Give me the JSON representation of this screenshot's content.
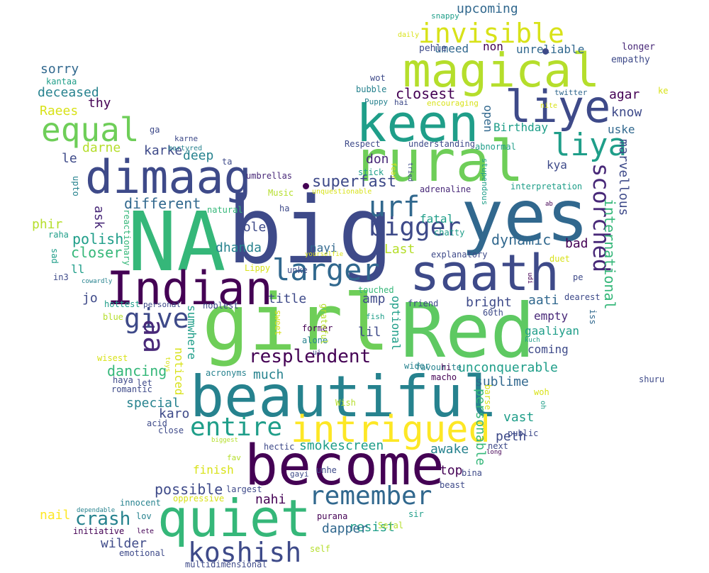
{
  "words": [
    {
      "text": "big",
      "color": "#3e4a89"
    },
    {
      "text": "yes",
      "color": "#31688e"
    },
    {
      "text": "NA",
      "color": "#35b779"
    },
    {
      "text": "girl",
      "color": "#6ece58"
    },
    {
      "text": "Red",
      "color": "#5ec962"
    },
    {
      "text": "Indian",
      "color": "#440154"
    },
    {
      "text": "saath",
      "color": "#3e4a89"
    },
    {
      "text": "beautiful",
      "color": "#26828e"
    },
    {
      "text": "become",
      "color": "#440154"
    },
    {
      "text": "quiet",
      "color": "#35b779"
    },
    {
      "text": "rural",
      "color": "#6ece58"
    },
    {
      "text": "keen",
      "color": "#1f9e89"
    },
    {
      "text": "magical",
      "color": "#b5de2b"
    },
    {
      "text": "dimaag",
      "color": "#3e4a89"
    },
    {
      "text": "liye",
      "color": "#3e4a89"
    },
    {
      "text": "intrigued",
      "color": "#fde725"
    },
    {
      "text": "equal",
      "color": "#6ece58"
    },
    {
      "text": "larger",
      "color": "#31688e"
    },
    {
      "text": "remember",
      "color": "#31688e"
    },
    {
      "text": "koshish",
      "color": "#3e4a89"
    },
    {
      "text": "entire",
      "color": "#1f9e89"
    },
    {
      "text": "invisible",
      "color": "#d8e219"
    },
    {
      "text": "liya",
      "color": "#1f9e89"
    },
    {
      "text": "bigger",
      "color": "#3e4a89"
    },
    {
      "text": "scorched",
      "color": "#482878"
    },
    {
      "text": "give",
      "color": "#3e4a89"
    },
    {
      "text": "urf",
      "color": "#31688e"
    },
    {
      "text": "aa",
      "color": "#482878"
    },
    {
      "text": "resplendent",
      "color": "#440154"
    },
    {
      "text": "crash",
      "color": "#26828e"
    },
    {
      "text": "superfast",
      "color": "#3e4a89"
    },
    {
      "text": "international",
      "color": "#35b779"
    },
    {
      "text": "dancing",
      "color": "#35b779"
    },
    {
      "text": "smokescreen",
      "color": "#1f9e89"
    },
    {
      "text": "unconquerable",
      "color": "#1f9e89"
    },
    {
      "text": "possible",
      "color": "#3e4a89"
    },
    {
      "text": "different",
      "color": "#31688e"
    },
    {
      "text": "polish",
      "color": "#1f9e89"
    },
    {
      "text": "closer",
      "color": "#35b779"
    },
    {
      "text": "dynamic",
      "color": "#31688e"
    },
    {
      "text": "closest",
      "color": "#440154"
    },
    {
      "text": "upcoming",
      "color": "#31688e"
    },
    {
      "text": "marvellous",
      "color": "#3e4a89"
    },
    {
      "text": "personable",
      "color": "#35b779"
    },
    {
      "text": "resist",
      "color": "#1f9e89"
    },
    {
      "text": "dapper",
      "color": "#31688e"
    },
    {
      "text": "awake",
      "color": "#26828e"
    },
    {
      "text": "sublime",
      "color": "#31688e"
    },
    {
      "text": "special",
      "color": "#26828e"
    },
    {
      "text": "nail",
      "color": "#fde725"
    },
    {
      "text": "wilder",
      "color": "#3e4a89"
    },
    {
      "text": "finish",
      "color": "#d8e219"
    },
    {
      "text": "deceased",
      "color": "#26828e"
    },
    {
      "text": "sorry",
      "color": "#31688e"
    },
    {
      "text": "Raees",
      "color": "#d8e219"
    },
    {
      "text": "thy",
      "color": "#440154"
    },
    {
      "text": "darne",
      "color": "#b5de2b"
    },
    {
      "text": "karke",
      "color": "#3e4a89"
    },
    {
      "text": "deep",
      "color": "#26828e"
    },
    {
      "text": "le",
      "color": "#3e4a89"
    },
    {
      "text": "phir",
      "color": "#b5de2b"
    },
    {
      "text": "ask",
      "color": "#482878"
    },
    {
      "text": "bole",
      "color": "#3e4a89"
    },
    {
      "text": "dhanda",
      "color": "#26828e"
    },
    {
      "text": "ll",
      "color": "#1f9e89"
    },
    {
      "text": "jo",
      "color": "#3e4a89"
    },
    {
      "text": "title",
      "color": "#3e4a89"
    },
    {
      "text": "sumwhere",
      "color": "#1f9e89"
    },
    {
      "text": "noticed",
      "color": "#d8e219"
    },
    {
      "text": "much",
      "color": "#26828e"
    },
    {
      "text": "karo",
      "color": "#3e4a89"
    },
    {
      "text": "nahi",
      "color": "#440154"
    },
    {
      "text": "amp",
      "color": "#3e4a89"
    },
    {
      "text": "lil",
      "color": "#3e4a89"
    },
    {
      "text": "optional",
      "color": "#1f9e89"
    },
    {
      "text": "nayi",
      "color": "#31688e"
    },
    {
      "text": "Last",
      "color": "#b5de2b"
    },
    {
      "text": "fatal",
      "color": "#1f9e89"
    },
    {
      "text": "bad",
      "color": "#440154"
    },
    {
      "text": "aati",
      "color": "#31688e"
    },
    {
      "text": "empty",
      "color": "#482878"
    },
    {
      "text": "bright",
      "color": "#3e4a89"
    },
    {
      "text": "gaaliyan",
      "color": "#1f9e89"
    },
    {
      "text": "coming",
      "color": "#3e4a89"
    },
    {
      "text": "vast",
      "color": "#1f9e89"
    },
    {
      "text": "peth",
      "color": "#3e4a89"
    },
    {
      "text": "top",
      "color": "#440154"
    },
    {
      "text": "don",
      "color": "#482878"
    },
    {
      "text": "kya",
      "color": "#3e4a89"
    },
    {
      "text": "agar",
      "color": "#440154"
    },
    {
      "text": "know",
      "color": "#3e4a89"
    },
    {
      "text": "uske",
      "color": "#31688e"
    },
    {
      "text": "Birthday",
      "color": "#1f9e89"
    },
    {
      "text": "open",
      "color": "#31688e"
    },
    {
      "text": "umeed",
      "color": "#31688e"
    },
    {
      "text": "non",
      "color": "#440154"
    },
    {
      "text": "unreliable",
      "color": "#31688e"
    },
    {
      "text": "longer",
      "color": "#482878"
    },
    {
      "text": "empathy",
      "color": "#3e4a89"
    },
    {
      "text": "pehle",
      "color": "#3e4a89"
    },
    {
      "text": "twitter",
      "color": "#31688e"
    },
    {
      "text": "ke",
      "color": "#d8e219"
    },
    {
      "text": "nite",
      "color": "#d8e219"
    },
    {
      "text": "snappy",
      "color": "#1f9e89"
    },
    {
      "text": "daily",
      "color": "#d8e219"
    },
    {
      "text": "wot",
      "color": "#3e4a89"
    },
    {
      "text": "bubble",
      "color": "#26828e"
    },
    {
      "text": "hai",
      "color": "#3e4a89"
    },
    {
      "text": "Puppy",
      "color": "#26828e"
    },
    {
      "text": "encouraging",
      "color": "#d8e219"
    },
    {
      "text": "Respect",
      "color": "#3e4a89"
    },
    {
      "text": "understanding",
      "color": "#3e4a89"
    },
    {
      "text": "abnormal",
      "color": "#1f9e89"
    },
    {
      "text": "stupendous",
      "color": "#1f9e89"
    },
    {
      "text": "fear",
      "color": "#d8e219"
    },
    {
      "text": "tried",
      "color": "#3e4a89"
    },
    {
      "text": "stick",
      "color": "#1f9e89"
    },
    {
      "text": "unquestionable",
      "color": "#d8e219"
    },
    {
      "text": "adrenaline",
      "color": "#482878"
    },
    {
      "text": "interpretation",
      "color": "#1f9e89"
    },
    {
      "text": "ab",
      "color": "#440154"
    },
    {
      "text": "chatty",
      "color": "#1f9e89"
    },
    {
      "text": "explanatory",
      "color": "#3e4a89"
    },
    {
      "text": "duet",
      "color": "#d8e219"
    },
    {
      "text": "pe",
      "color": "#3e4a89"
    },
    {
      "text": "dearest",
      "color": "#3e4a89"
    },
    {
      "text": "iss",
      "color": "#31688e"
    },
    {
      "text": "60th",
      "color": "#3e4a89"
    },
    {
      "text": "friend",
      "color": "#3e4a89"
    },
    {
      "text": "touched",
      "color": "#35b779"
    },
    {
      "text": "fish",
      "color": "#1f9e89"
    },
    {
      "text": "udi",
      "color": "#440154"
    },
    {
      "text": "kuch",
      "color": "#1f9e89"
    },
    {
      "text": "former",
      "color": "#440154"
    },
    {
      "text": "alone",
      "color": "#26828e"
    },
    {
      "text": "favourite",
      "color": "#26828e"
    },
    {
      "text": "wider",
      "color": "#26828e"
    },
    {
      "text": "hi",
      "color": "#440154"
    },
    {
      "text": "macho",
      "color": "#440154"
    },
    {
      "text": "barse",
      "color": "#d8e219"
    },
    {
      "text": "woh",
      "color": "#d8e219"
    },
    {
      "text": "oh",
      "color": "#1f9e89"
    },
    {
      "text": "shuru",
      "color": "#3e4a89"
    },
    {
      "text": "Wish",
      "color": "#b5de2b"
    },
    {
      "text": "public",
      "color": "#3e4a89"
    },
    {
      "text": "next",
      "color": "#3e4a89"
    },
    {
      "text": "long",
      "color": "#440154"
    },
    {
      "text": "hectic",
      "color": "#3e4a89"
    },
    {
      "text": "unhe",
      "color": "#3e4a89"
    },
    {
      "text": "bina",
      "color": "#3e4a89"
    },
    {
      "text": "beast",
      "color": "#3e4a89"
    },
    {
      "text": "gayi",
      "color": "#3e4a89"
    },
    {
      "text": "purana",
      "color": "#440154"
    },
    {
      "text": "sir",
      "color": "#1f9e89"
    },
    {
      "text": "Sejal",
      "color": "#b5de2b"
    },
    {
      "text": "self",
      "color": "#b5de2b"
    },
    {
      "text": "largest",
      "color": "#3e4a89"
    },
    {
      "text": "oppressive",
      "color": "#d8e219"
    },
    {
      "text": "innocent",
      "color": "#26828e"
    },
    {
      "text": "dependable",
      "color": "#26828e"
    },
    {
      "text": "lov",
      "color": "#26828e"
    },
    {
      "text": "lete",
      "color": "#440154"
    },
    {
      "text": "initiative",
      "color": "#440154"
    },
    {
      "text": "emotional",
      "color": "#3e4a89"
    },
    {
      "text": "multidimensional",
      "color": "#3e4a89"
    },
    {
      "text": "fav",
      "color": "#b5de2b"
    },
    {
      "text": "biggest",
      "color": "#b5de2b"
    },
    {
      "text": "close",
      "color": "#3e4a89"
    },
    {
      "text": "acid",
      "color": "#3e4a89"
    },
    {
      "text": "toys",
      "color": "#d8e219"
    },
    {
      "text": "wisest",
      "color": "#d8e219"
    },
    {
      "text": "romantic",
      "color": "#3e4a89"
    },
    {
      "text": "haya",
      "color": "#3e4a89"
    },
    {
      "text": "let",
      "color": "#3e4a89"
    },
    {
      "text": "acronyms",
      "color": "#26828e"
    },
    {
      "text": "sweet",
      "color": "#d8e219"
    },
    {
      "text": "grateful",
      "color": "#b5de2b"
    },
    {
      "text": "noblest",
      "color": "#3e4a89"
    },
    {
      "text": "unke",
      "color": "#3e4a89"
    },
    {
      "text": "yourselfie",
      "color": "#d8e219"
    },
    {
      "text": "personal",
      "color": "#3e4a89"
    },
    {
      "text": "hottest",
      "color": "#1f9e89"
    },
    {
      "text": "blue",
      "color": "#b5de2b"
    },
    {
      "text": "cowardly",
      "color": "#26828e"
    },
    {
      "text": "in3",
      "color": "#3e4a89"
    },
    {
      "text": "sad",
      "color": "#1f9e89"
    },
    {
      "text": "raha",
      "color": "#1f9e89"
    },
    {
      "text": "reactionary",
      "color": "#35b779"
    },
    {
      "text": "Lippy",
      "color": "#d8e219"
    },
    {
      "text": "ha",
      "color": "#3e4a89"
    },
    {
      "text": "natural",
      "color": "#35b779"
    },
    {
      "text": "Music",
      "color": "#b5de2b"
    },
    {
      "text": "umbrellas",
      "color": "#482878"
    },
    {
      "text": "upto",
      "color": "#26828e"
    },
    {
      "text": "ta",
      "color": "#3e4a89"
    },
    {
      "text": "martyred",
      "color": "#26828e"
    },
    {
      "text": "karne",
      "color": "#3e4a89"
    },
    {
      "text": "ga",
      "color": "#3e4a89"
    },
    {
      "text": "kantaa",
      "color": "#1f9e89"
    },
    {
      "text": "ui",
      "color": "#3e4a89"
    }
  ]
}
